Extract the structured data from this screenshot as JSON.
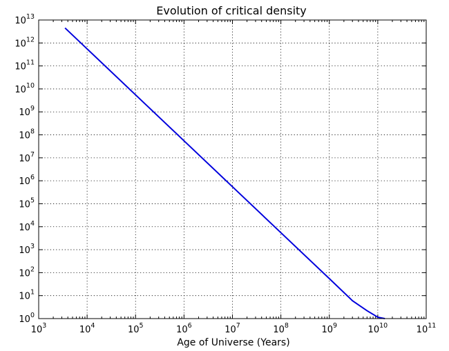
{
  "chart_data": {
    "type": "line",
    "title": "Evolution of critical density",
    "xlabel": "Age of Universe (Years)",
    "ylabel": "",
    "xscale": "log",
    "yscale": "log",
    "xlim": [
      1000,
      100000000000
    ],
    "ylim": [
      1,
      10000000000000
    ],
    "grid": true,
    "x_ticks": [
      {
        "base": "10",
        "exp": "3"
      },
      {
        "base": "10",
        "exp": "4"
      },
      {
        "base": "10",
        "exp": "5"
      },
      {
        "base": "10",
        "exp": "6"
      },
      {
        "base": "10",
        "exp": "7"
      },
      {
        "base": "10",
        "exp": "8"
      },
      {
        "base": "10",
        "exp": "9"
      },
      {
        "base": "10",
        "exp": "10"
      },
      {
        "base": "10",
        "exp": "11"
      }
    ],
    "y_ticks": [
      {
        "base": "10",
        "exp": "0"
      },
      {
        "base": "10",
        "exp": "1"
      },
      {
        "base": "10",
        "exp": "2"
      },
      {
        "base": "10",
        "exp": "3"
      },
      {
        "base": "10",
        "exp": "4"
      },
      {
        "base": "10",
        "exp": "5"
      },
      {
        "base": "10",
        "exp": "6"
      },
      {
        "base": "10",
        "exp": "7"
      },
      {
        "base": "10",
        "exp": "8"
      },
      {
        "base": "10",
        "exp": "9"
      },
      {
        "base": "10",
        "exp": "10"
      },
      {
        "base": "10",
        "exp": "11"
      },
      {
        "base": "10",
        "exp": "12"
      },
      {
        "base": "10",
        "exp": "13"
      }
    ],
    "series": [
      {
        "color": "#0000dd",
        "x": [
          3500,
          10000,
          100000,
          1000000,
          10000000,
          100000000,
          1000000000,
          3000000000,
          6000000000,
          10000000000,
          14000000000
        ],
        "y": [
          4500000000000,
          550000000000,
          5500000000,
          55000000,
          550000,
          5500,
          55,
          6,
          2.2,
          1.15,
          1.0
        ]
      }
    ]
  }
}
